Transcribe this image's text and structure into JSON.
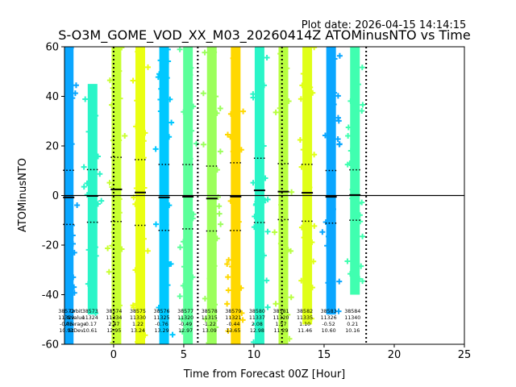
{
  "plot_date": "Plot date: 2026-04-15 14:14:15",
  "chart_data": {
    "type": "scatter",
    "title": "S-O3M_GOME_VOD_XX_M03_20260414Z ATOMinusNTO vs Time",
    "xlabel": "Time from Forecast 00Z [Hour]",
    "ylabel": "ATOMinusNTO",
    "xlim": [
      -3.5,
      25
    ],
    "ylim": [
      -60,
      60
    ],
    "xticks": [
      0,
      5,
      10,
      15,
      20,
      25
    ],
    "yticks": [
      -60,
      -40,
      -20,
      0,
      20,
      40,
      60
    ],
    "reference_line_y": 0,
    "vertical_dotted_lines_x": [
      0,
      6,
      12,
      18
    ],
    "stats_row_labels": [
      "Orbit",
      "Nvalue",
      "Average",
      "StDev"
    ],
    "orbits": [
      {
        "orbit": "38572",
        "x": -3.2,
        "n": "11329",
        "average": -0.75,
        "stdev": 10.93,
        "band_low": -60,
        "band_high": 60,
        "color": "#0aa6ff"
      },
      {
        "orbit": "38573",
        "x": -1.5,
        "n": "11324",
        "average": -0.17,
        "stdev": 10.61,
        "band_low": -48,
        "band_high": 45,
        "color": "#2af5c8"
      },
      {
        "orbit": "38574",
        "x": 0.2,
        "n": "11334",
        "average": 2.47,
        "stdev": 12.95,
        "band_low": -60,
        "band_high": 60,
        "color": "#c8ff32"
      },
      {
        "orbit": "38575",
        "x": 1.9,
        "n": "11330",
        "average": 1.22,
        "stdev": 13.24,
        "band_low": -60,
        "band_high": 60,
        "color": "#eaff12"
      },
      {
        "orbit": "38576",
        "x": 3.6,
        "n": "11325",
        "average": -0.76,
        "stdev": 13.29,
        "band_low": -60,
        "band_high": 60,
        "color": "#00c8ff"
      },
      {
        "orbit": "38577",
        "x": 5.3,
        "n": "11320",
        "average": -0.49,
        "stdev": 12.97,
        "band_low": -60,
        "band_high": 60,
        "color": "#5cff9a"
      },
      {
        "orbit": "38578",
        "x": 7.0,
        "n": "11315",
        "average": -1.22,
        "stdev": 13.09,
        "band_low": -60,
        "band_high": 60,
        "color": "#9cff5c"
      },
      {
        "orbit": "38579",
        "x": 8.7,
        "n": "11321",
        "average": -0.44,
        "stdev": 13.65,
        "band_low": -60,
        "band_high": 60,
        "color": "#ffd800"
      },
      {
        "orbit": "38580",
        "x": 10.4,
        "n": "11337",
        "average": 2.08,
        "stdev": 12.98,
        "band_low": -60,
        "band_high": 60,
        "color": "#2af5c8"
      },
      {
        "orbit": "38581",
        "x": 12.1,
        "n": "11320",
        "average": 1.57,
        "stdev": 11.29,
        "band_low": -60,
        "band_high": 60,
        "color": "#b8ff40"
      },
      {
        "orbit": "38582",
        "x": 13.8,
        "n": "11335",
        "average": 1.1,
        "stdev": 11.46,
        "band_low": -52,
        "band_high": 60,
        "color": "#e0ff18"
      },
      {
        "orbit": "38583",
        "x": 15.5,
        "n": "11326",
        "average": -0.52,
        "stdev": 10.6,
        "band_low": -48,
        "band_high": 60,
        "color": "#0aa6ff"
      },
      {
        "orbit": "38584",
        "x": 17.2,
        "n": "11340",
        "average": 0.21,
        "stdev": 10.16,
        "band_low": -40,
        "band_high": 60,
        "color": "#40ffb0"
      }
    ]
  }
}
